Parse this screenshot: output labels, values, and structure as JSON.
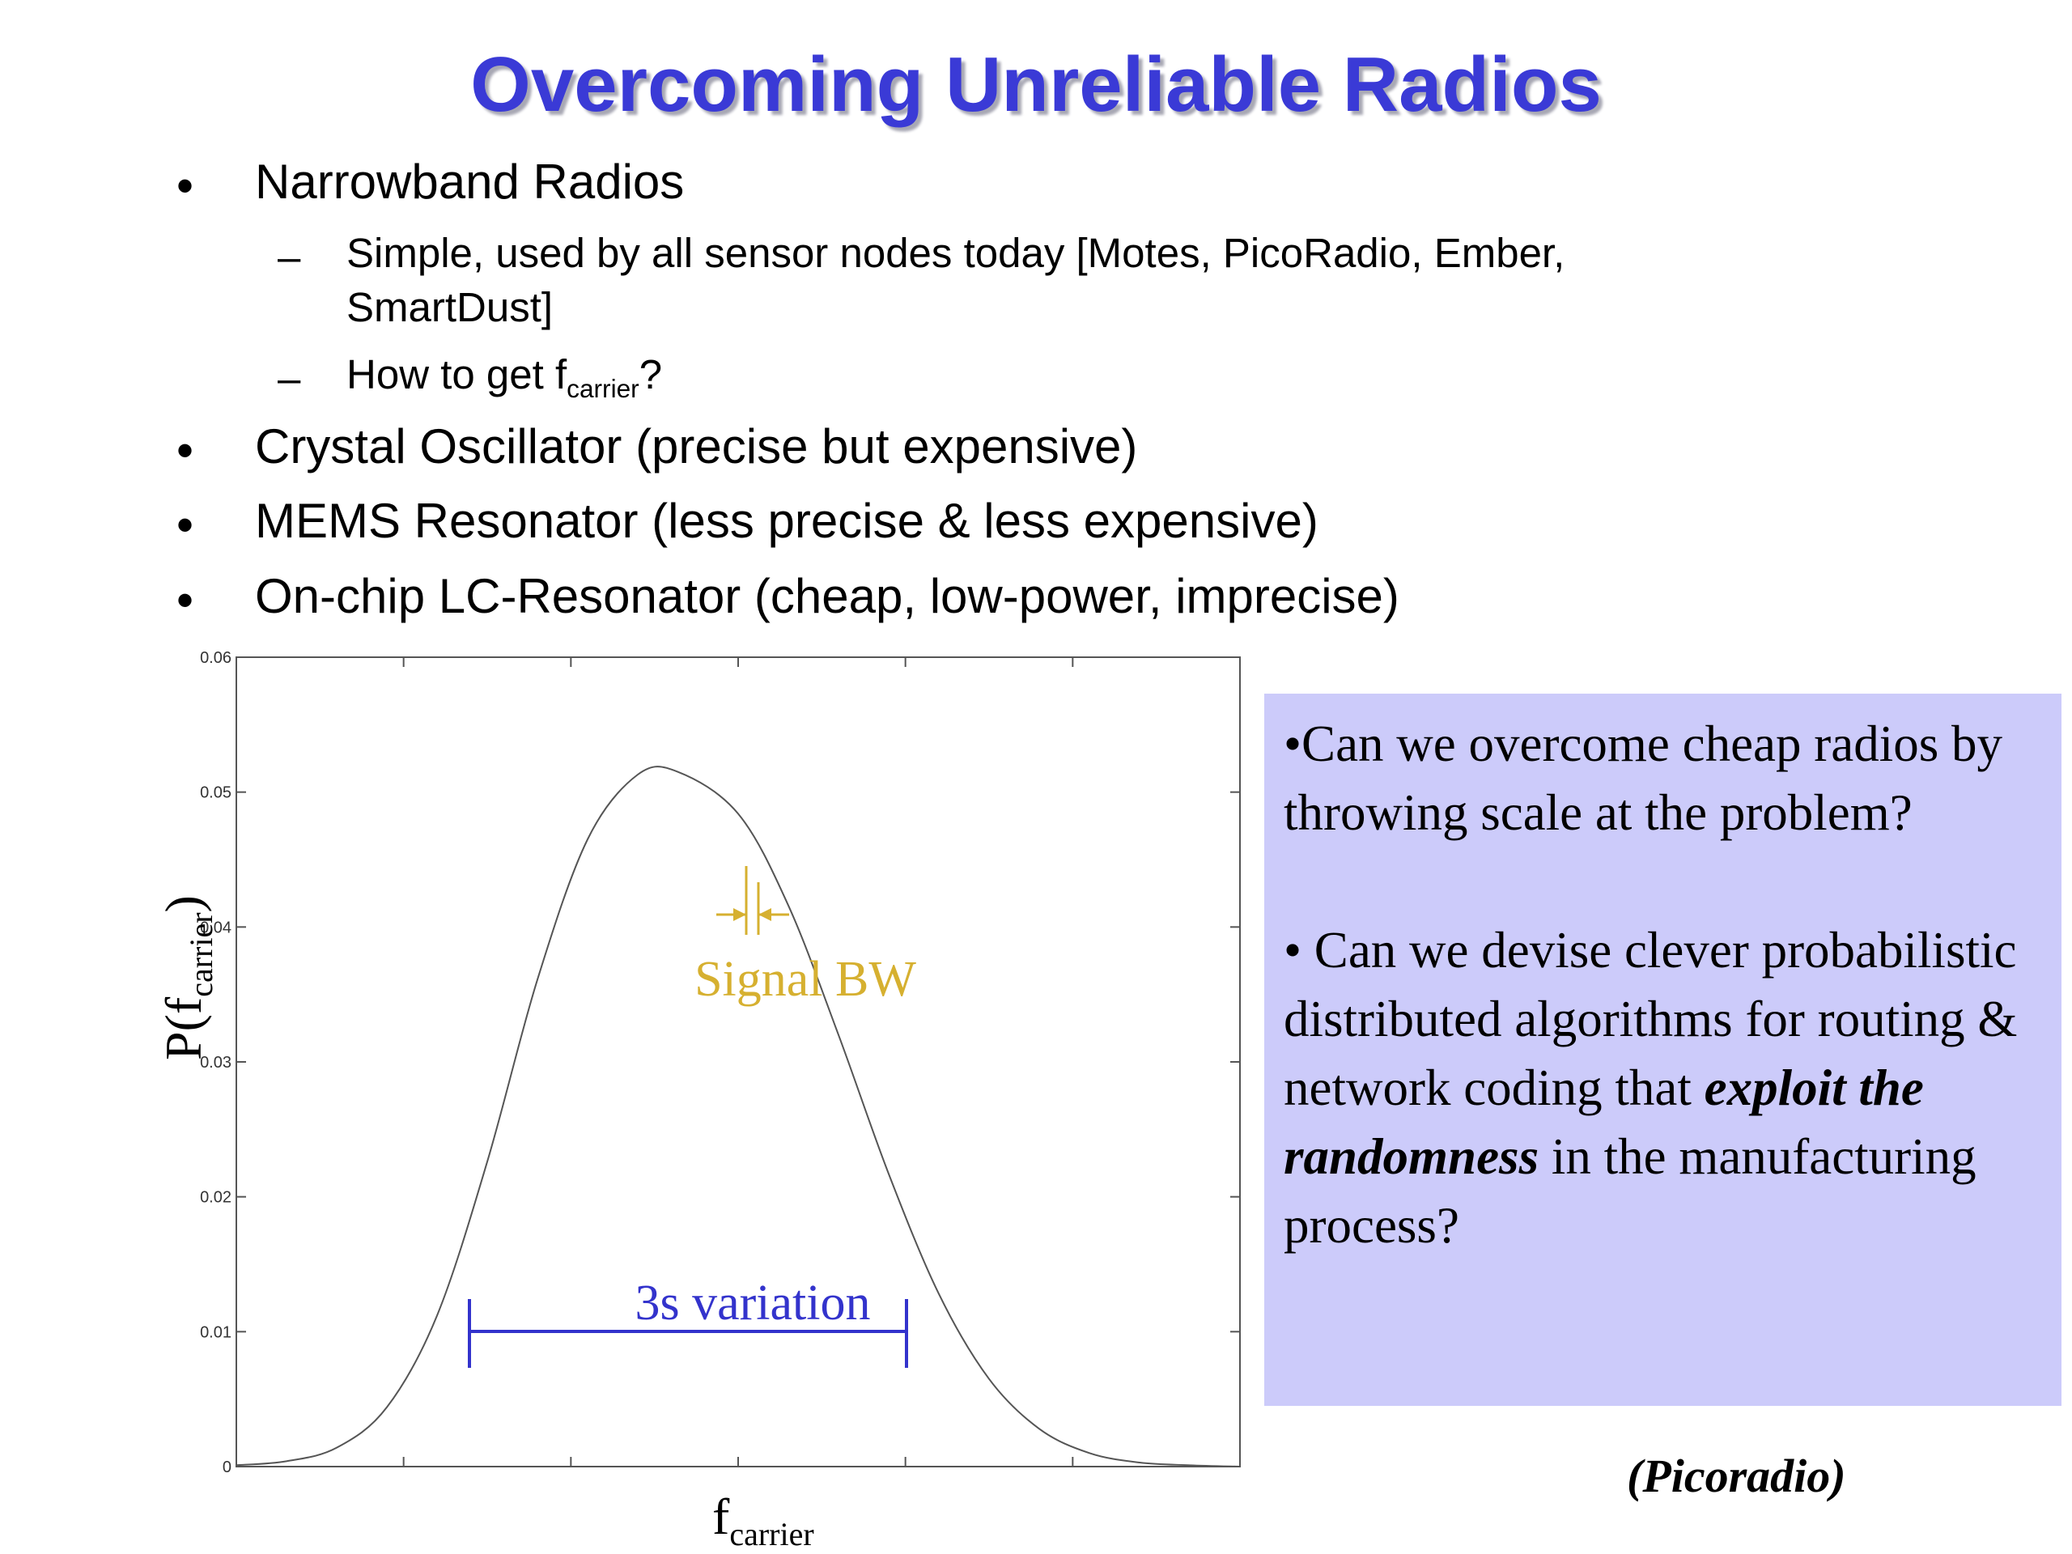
{
  "slide": {
    "title": "Overcoming Unreliable Radios",
    "bullets": [
      {
        "level": 1,
        "text": "Narrowband Radios"
      },
      {
        "level": 2,
        "text": "Simple, used by all sensor nodes today [Motes, PicoRadio, Ember,",
        "text2": "SmartDust]"
      },
      {
        "level": 2,
        "text": "How to get f",
        "sub": "carrier",
        "suffix": "?"
      },
      {
        "level": 1,
        "text": "Crystal Oscillator (precise but expensive)"
      },
      {
        "level": 1,
        "text": "MEMS Resonator (less precise & less expensive)"
      },
      {
        "level": 1,
        "text": "On-chip LC-Resonator (cheap, low-power, imprecise)"
      }
    ],
    "bullet_char": "•",
    "dash_char": "–",
    "question_box": {
      "q1": "•Can we overcome cheap radios by throwing scale at the problem?",
      "q2_part1": "• Can we devise clever probabilistic distributed algorithms for routing & network coding that ",
      "q2_emph": "exploit the randomness",
      "q2_part2": " in the manufacturing process?",
      "background": "#cccbfa"
    },
    "source": "(Picoradio)",
    "title_color": "#3a3ad6"
  },
  "chart_data": {
    "type": "line",
    "series": [
      {
        "name": "",
        "x": [
          0.0,
          0.05,
          0.1,
          0.15,
          0.2,
          0.25,
          0.3,
          0.35,
          0.4,
          0.44,
          0.5,
          0.55,
          0.6,
          0.65,
          0.7,
          0.75,
          0.8,
          0.85,
          0.9,
          0.95,
          1.0
        ],
        "values": [
          0.0001,
          0.0004,
          0.0014,
          0.0044,
          0.0112,
          0.0226,
          0.0361,
          0.0465,
          0.0513,
          0.0515,
          0.0484,
          0.0416,
          0.032,
          0.0217,
          0.0128,
          0.0065,
          0.0028,
          0.001,
          0.0003,
          0.0001,
          0.0
        ]
      }
    ],
    "xlabel": "f",
    "xlabel_sub": "carrier",
    "ylabel": "P(f",
    "ylabel_sub": "carrier",
    "ylabel_suffix": ")",
    "ylim": [
      0,
      0.06
    ],
    "y_ticks": [
      "0",
      "0.01",
      "0.02",
      "0.03",
      "0.04",
      "0.05",
      "0.06"
    ],
    "annotations": {
      "signal_bw": "Signal BW",
      "variation": "3s variation",
      "signal_color": "#d6b030",
      "variation_color": "#3333cc"
    }
  }
}
